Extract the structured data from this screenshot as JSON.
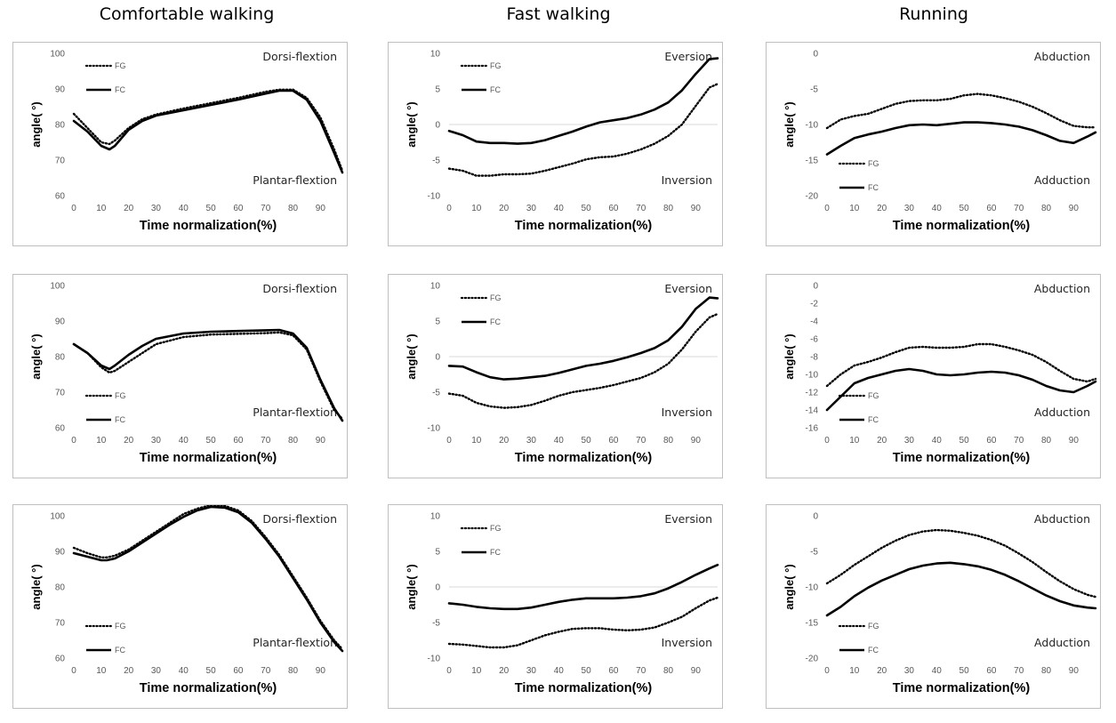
{
  "columns": [
    "Comfortable walking",
    "Fast walking",
    "Running"
  ],
  "colors": {
    "line": "#000000",
    "frame": "#bfbfbf",
    "tick": "#595959"
  },
  "chart_data": [
    {
      "type": "line",
      "title": "",
      "xlabel": "Time normalization(%)",
      "ylabel": "angle( °)",
      "xlim": [
        0,
        98
      ],
      "ylim": [
        60,
        100
      ],
      "xticks": [
        0,
        10,
        20,
        30,
        40,
        50,
        60,
        70,
        80,
        90
      ],
      "yticks": [
        60,
        70,
        80,
        90,
        100
      ],
      "annotations": {
        "top": "Dorsi-flextion",
        "bottom": "Plantar-flextion"
      },
      "legend_position": "top-left",
      "x": [
        0,
        5,
        10,
        13,
        15,
        20,
        25,
        30,
        40,
        50,
        60,
        70,
        75,
        80,
        85,
        90,
        95,
        98
      ],
      "series": [
        {
          "name": "FG",
          "style": "dotted",
          "values": [
            83,
            79,
            75,
            74.5,
            75.5,
            79,
            81.5,
            82.8,
            84.5,
            86,
            87.5,
            89.2,
            89.8,
            89.8,
            87.5,
            82,
            73,
            67
          ]
        },
        {
          "name": "FC",
          "style": "solid",
          "values": [
            81,
            78,
            74,
            73,
            74,
            78.5,
            81,
            82.5,
            84,
            85.5,
            87,
            88.7,
            89.5,
            89.5,
            87,
            81,
            72,
            66.5
          ]
        }
      ]
    },
    {
      "type": "line",
      "title": "",
      "xlabel": "Time normalization(%)",
      "ylabel": "angle( °)",
      "xlim": [
        0,
        98
      ],
      "ylim": [
        -10,
        10
      ],
      "xticks": [
        0,
        10,
        20,
        30,
        40,
        50,
        60,
        70,
        80,
        90
      ],
      "yticks": [
        -10,
        -5,
        0,
        5,
        10
      ],
      "annotations": {
        "top": "Eversion",
        "bottom": "Inversion"
      },
      "legend_position": "top-left",
      "x": [
        0,
        5,
        10,
        15,
        20,
        25,
        30,
        35,
        40,
        45,
        50,
        55,
        60,
        65,
        70,
        75,
        80,
        85,
        90,
        95,
        98
      ],
      "series": [
        {
          "name": "FG",
          "style": "dotted",
          "values": [
            -6.2,
            -6.5,
            -7.2,
            -7.2,
            -7,
            -7,
            -6.9,
            -6.5,
            -6,
            -5.5,
            -4.9,
            -4.6,
            -4.5,
            -4.1,
            -3.5,
            -2.7,
            -1.6,
            0,
            2.6,
            5.2,
            5.7
          ]
        },
        {
          "name": "FC",
          "style": "solid",
          "values": [
            -0.9,
            -1.5,
            -2.4,
            -2.6,
            -2.6,
            -2.7,
            -2.6,
            -2.2,
            -1.6,
            -1,
            -0.3,
            0.3,
            0.6,
            0.9,
            1.4,
            2.1,
            3.1,
            4.8,
            7.1,
            9.2,
            9.3
          ]
        }
      ]
    },
    {
      "type": "line",
      "title": "",
      "xlabel": "Time normalization(%)",
      "ylabel": "angle( °)",
      "xlim": [
        0,
        98
      ],
      "ylim": [
        -20,
        0
      ],
      "xticks": [
        0,
        10,
        20,
        30,
        40,
        50,
        60,
        70,
        80,
        90
      ],
      "yticks": [
        -20,
        -15,
        -10,
        -5,
        0
      ],
      "annotations": {
        "top": "Abduction",
        "bottom": "Adduction"
      },
      "legend_position": "bottom-left",
      "x": [
        0,
        5,
        10,
        15,
        20,
        25,
        30,
        35,
        40,
        45,
        50,
        55,
        60,
        65,
        70,
        75,
        80,
        85,
        90,
        95,
        98
      ],
      "series": [
        {
          "name": "FG",
          "style": "dotted",
          "values": [
            -10.5,
            -9.3,
            -8.8,
            -8.5,
            -7.8,
            -7.1,
            -6.7,
            -6.6,
            -6.6,
            -6.4,
            -5.9,
            -5.7,
            -5.9,
            -6.3,
            -6.8,
            -7.5,
            -8.4,
            -9.4,
            -10.2,
            -10.4,
            -10.4
          ]
        },
        {
          "name": "FC",
          "style": "solid",
          "values": [
            -14.2,
            -13,
            -11.9,
            -11.4,
            -11,
            -10.5,
            -10.1,
            -10,
            -10.1,
            -9.9,
            -9.7,
            -9.7,
            -9.8,
            -10,
            -10.3,
            -10.8,
            -11.5,
            -12.3,
            -12.6,
            -11.7,
            -11.1
          ]
        }
      ]
    },
    {
      "type": "line",
      "title": "",
      "xlabel": "Time normalization(%)",
      "ylabel": "angle( °)",
      "xlim": [
        0,
        98
      ],
      "ylim": [
        60,
        100
      ],
      "xticks": [
        0,
        10,
        20,
        30,
        40,
        50,
        60,
        70,
        80,
        90
      ],
      "yticks": [
        60,
        70,
        80,
        90,
        100
      ],
      "annotations": {
        "top": "Dorsi-flextion",
        "bottom": "Plantar-flextion"
      },
      "legend_position": "bottom-left",
      "x": [
        0,
        5,
        10,
        13,
        15,
        20,
        25,
        30,
        40,
        50,
        60,
        70,
        75,
        80,
        85,
        90,
        95,
        98
      ],
      "series": [
        {
          "name": "FG",
          "style": "dotted",
          "values": [
            83.5,
            81,
            77,
            75.5,
            76,
            78.5,
            81,
            83.5,
            85.5,
            86.2,
            86.4,
            86.6,
            86.8,
            86,
            82,
            73,
            65,
            62.5
          ]
        },
        {
          "name": "FC",
          "style": "solid",
          "values": [
            83.5,
            81,
            77.5,
            76.5,
            77.5,
            80.5,
            83,
            85,
            86.5,
            87,
            87.2,
            87.4,
            87.5,
            86.5,
            82.5,
            73.5,
            65.5,
            62
          ]
        }
      ]
    },
    {
      "type": "line",
      "title": "",
      "xlabel": "Time normalization(%)",
      "ylabel": "angle( °)",
      "xlim": [
        0,
        98
      ],
      "ylim": [
        -10,
        10
      ],
      "xticks": [
        0,
        10,
        20,
        30,
        40,
        50,
        60,
        70,
        80,
        90
      ],
      "yticks": [
        -10,
        -5,
        0,
        5,
        10
      ],
      "annotations": {
        "top": "Eversion",
        "bottom": "Inversion"
      },
      "legend_position": "top-left",
      "x": [
        0,
        5,
        10,
        15,
        20,
        25,
        30,
        35,
        40,
        45,
        50,
        55,
        60,
        65,
        70,
        75,
        80,
        85,
        90,
        95,
        98
      ],
      "series": [
        {
          "name": "FG",
          "style": "dotted",
          "values": [
            -5.2,
            -5.5,
            -6.5,
            -7,
            -7.2,
            -7.1,
            -6.8,
            -6.2,
            -5.5,
            -5,
            -4.7,
            -4.4,
            -4,
            -3.5,
            -3,
            -2.2,
            -1,
            1,
            3.5,
            5.5,
            6
          ]
        },
        {
          "name": "FC",
          "style": "solid",
          "values": [
            -1.3,
            -1.4,
            -2.2,
            -2.9,
            -3.2,
            -3.1,
            -2.9,
            -2.7,
            -2.3,
            -1.8,
            -1.3,
            -1,
            -0.6,
            -0.1,
            0.5,
            1.2,
            2.3,
            4.2,
            6.7,
            8.3,
            8.2
          ]
        }
      ]
    },
    {
      "type": "line",
      "title": "",
      "xlabel": "Time normalization(%)",
      "ylabel": "angle( °)",
      "xlim": [
        0,
        98
      ],
      "ylim": [
        -16,
        0
      ],
      "xticks": [
        0,
        10,
        20,
        30,
        40,
        50,
        60,
        70,
        80,
        90
      ],
      "yticks": [
        -16,
        -14,
        -12,
        -10,
        -8,
        -6,
        -4,
        -2,
        0
      ],
      "annotations": {
        "top": "Abduction",
        "bottom": "Adduction"
      },
      "legend_position": "bottom-left",
      "x": [
        0,
        5,
        10,
        15,
        20,
        25,
        30,
        35,
        40,
        45,
        50,
        55,
        60,
        65,
        70,
        75,
        80,
        85,
        90,
        95,
        98
      ],
      "series": [
        {
          "name": "FG",
          "style": "dotted",
          "values": [
            -11.3,
            -10,
            -9,
            -8.6,
            -8.1,
            -7.5,
            -7,
            -6.9,
            -7,
            -7,
            -6.9,
            -6.6,
            -6.6,
            -6.9,
            -7.3,
            -7.8,
            -8.6,
            -9.6,
            -10.5,
            -10.8,
            -10.5
          ]
        },
        {
          "name": "FC",
          "style": "solid",
          "values": [
            -14,
            -12.5,
            -11,
            -10.4,
            -10,
            -9.6,
            -9.4,
            -9.6,
            -10,
            -10.1,
            -10,
            -9.8,
            -9.7,
            -9.8,
            -10.1,
            -10.6,
            -11.3,
            -11.8,
            -12,
            -11.3,
            -10.8
          ]
        }
      ]
    },
    {
      "type": "line",
      "title": "",
      "xlabel": "Time normalization(%)",
      "ylabel": "angle( °)",
      "xlim": [
        0,
        98
      ],
      "ylim": [
        60,
        100
      ],
      "xticks": [
        0,
        10,
        20,
        30,
        40,
        50,
        60,
        70,
        80,
        90
      ],
      "yticks": [
        60,
        70,
        80,
        90,
        100
      ],
      "annotations": {
        "top": "Dorsi-flextion",
        "bottom": "Plantar-flextion"
      },
      "legend_position": "bottom-left",
      "x": [
        0,
        5,
        10,
        12,
        15,
        20,
        25,
        30,
        35,
        40,
        45,
        50,
        55,
        60,
        65,
        70,
        75,
        80,
        85,
        90,
        95,
        98
      ],
      "series": [
        {
          "name": "FG",
          "style": "dotted",
          "values": [
            91,
            89.5,
            88.3,
            88.3,
            88.8,
            90.5,
            93,
            95.5,
            98,
            100.5,
            102,
            103,
            102.8,
            101.5,
            98.5,
            94,
            89,
            83,
            77,
            70.5,
            65,
            62.5
          ]
        },
        {
          "name": "FC",
          "style": "solid",
          "values": [
            89.5,
            88.5,
            87.5,
            87.5,
            88,
            90,
            92.5,
            95,
            97.5,
            99.7,
            101.5,
            102.5,
            102.3,
            101,
            98,
            93.5,
            88.5,
            82.5,
            76.5,
            70,
            64.5,
            62
          ]
        }
      ]
    },
    {
      "type": "line",
      "title": "",
      "xlabel": "Time normalization(%)",
      "ylabel": "angle( °)",
      "xlim": [
        0,
        98
      ],
      "ylim": [
        -10,
        10
      ],
      "xticks": [
        0,
        10,
        20,
        30,
        40,
        50,
        60,
        70,
        80,
        90
      ],
      "yticks": [
        -10,
        -5,
        0,
        5,
        10
      ],
      "annotations": {
        "top": "Eversion",
        "bottom": "Inversion"
      },
      "legend_position": "top-left",
      "x": [
        0,
        5,
        10,
        15,
        20,
        25,
        30,
        35,
        40,
        45,
        50,
        55,
        60,
        65,
        70,
        75,
        80,
        85,
        90,
        95,
        98
      ],
      "series": [
        {
          "name": "FG",
          "style": "dotted",
          "values": [
            -8,
            -8.1,
            -8.3,
            -8.5,
            -8.5,
            -8.2,
            -7.5,
            -6.8,
            -6.3,
            -5.9,
            -5.8,
            -5.8,
            -6,
            -6.1,
            -6,
            -5.7,
            -5,
            -4.2,
            -3,
            -1.9,
            -1.5
          ]
        },
        {
          "name": "FC",
          "style": "solid",
          "values": [
            -2.3,
            -2.5,
            -2.8,
            -3,
            -3.1,
            -3.1,
            -2.9,
            -2.5,
            -2.1,
            -1.8,
            -1.6,
            -1.6,
            -1.6,
            -1.5,
            -1.3,
            -0.9,
            -0.2,
            0.7,
            1.7,
            2.6,
            3.1
          ]
        }
      ]
    },
    {
      "type": "line",
      "title": "",
      "xlabel": "Time normalization(%)",
      "ylabel": "angle( °)",
      "xlim": [
        0,
        98
      ],
      "ylim": [
        -20,
        0
      ],
      "xticks": [
        0,
        10,
        20,
        30,
        40,
        50,
        60,
        70,
        80,
        90
      ],
      "yticks": [
        -20,
        -15,
        -10,
        -5,
        0
      ],
      "annotations": {
        "top": "Abduction",
        "bottom": "Adduction"
      },
      "legend_position": "bottom-left",
      "x": [
        0,
        5,
        10,
        15,
        20,
        25,
        30,
        35,
        40,
        45,
        50,
        55,
        60,
        65,
        70,
        75,
        80,
        85,
        90,
        95,
        98
      ],
      "series": [
        {
          "name": "FG",
          "style": "dotted",
          "values": [
            -9.5,
            -8.3,
            -6.9,
            -5.7,
            -4.5,
            -3.5,
            -2.7,
            -2.2,
            -2,
            -2.1,
            -2.4,
            -2.8,
            -3.4,
            -4.2,
            -5.3,
            -6.5,
            -7.9,
            -9.2,
            -10.3,
            -11.1,
            -11.4
          ]
        },
        {
          "name": "FC",
          "style": "solid",
          "values": [
            -14,
            -12.8,
            -11.3,
            -10.1,
            -9.1,
            -8.3,
            -7.5,
            -7,
            -6.7,
            -6.6,
            -6.8,
            -7.1,
            -7.6,
            -8.3,
            -9.2,
            -10.2,
            -11.2,
            -12,
            -12.6,
            -12.9,
            -13
          ]
        }
      ]
    }
  ]
}
